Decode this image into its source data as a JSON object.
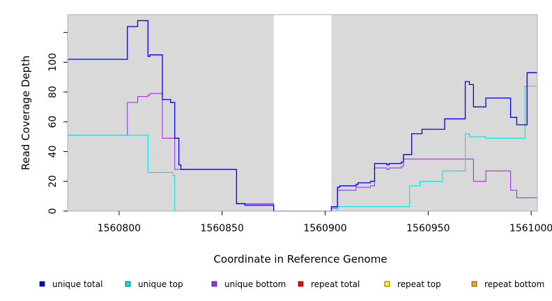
{
  "chart_data": {
    "type": "line",
    "title": "",
    "xlabel": "Coordinate in Reference Genome",
    "ylabel": "Read Coverage Depth",
    "xlim": [
      1560775,
      1561003
    ],
    "ylim": [
      0,
      132
    ],
    "x_ticks": [
      1560800,
      1560850,
      1560900,
      1560950,
      1561000
    ],
    "x_tick_labels": [
      "1560800",
      "1560850",
      "1560900",
      "1560950",
      "1561000"
    ],
    "y_ticks": [
      0,
      20,
      40,
      60,
      80,
      100,
      120
    ],
    "y_tick_labels": [
      "0",
      "20",
      "40",
      "60",
      "80",
      "100",
      ""
    ],
    "grid": false,
    "background_color": "#d9d9d9",
    "gap_region": [
      1560875,
      1560903
    ],
    "legend_position": "bottom",
    "series": [
      {
        "name": "unique total",
        "color": "#0000ee",
        "step": [
          [
            1560775,
            102
          ],
          [
            1560804,
            124
          ],
          [
            1560809,
            128
          ],
          [
            1560814,
            104
          ],
          [
            1560815,
            105
          ],
          [
            1560821,
            75
          ],
          [
            1560825,
            73
          ],
          [
            1560827,
            49
          ],
          [
            1560829,
            31
          ],
          [
            1560830,
            28
          ],
          [
            1560857,
            5
          ],
          [
            1560861,
            4
          ],
          [
            1560875,
            0
          ],
          [
            1560903,
            3
          ],
          [
            1560906,
            16
          ],
          [
            1560907,
            17
          ],
          [
            1560915,
            18
          ],
          [
            1560916,
            19
          ],
          [
            1560922,
            20
          ],
          [
            1560924,
            32
          ],
          [
            1560930,
            31
          ],
          [
            1560931,
            32
          ],
          [
            1560937,
            33
          ],
          [
            1560938,
            38
          ],
          [
            1560942,
            52
          ],
          [
            1560947,
            55
          ],
          [
            1560958,
            62
          ],
          [
            1560968,
            87
          ],
          [
            1560970,
            85
          ],
          [
            1560972,
            70
          ],
          [
            1560978,
            76
          ],
          [
            1560990,
            63
          ],
          [
            1560993,
            58
          ],
          [
            1560998,
            93
          ],
          [
            1561003,
            93
          ]
        ]
      },
      {
        "name": "unique top",
        "color": "#00e5e5",
        "step": [
          [
            1560775,
            51
          ],
          [
            1560814,
            26
          ],
          [
            1560826,
            24
          ],
          [
            1560827,
            0
          ],
          [
            1560875,
            0
          ],
          [
            1560903,
            0
          ],
          [
            1560906,
            3
          ],
          [
            1560941,
            17
          ],
          [
            1560946,
            20
          ],
          [
            1560957,
            27
          ],
          [
            1560968,
            52
          ],
          [
            1560970,
            50
          ],
          [
            1560978,
            49
          ],
          [
            1560997,
            84
          ],
          [
            1561003,
            84
          ]
        ]
      },
      {
        "name": "unique bottom",
        "color": "#a030f0",
        "step": [
          [
            1560775,
            51
          ],
          [
            1560804,
            73
          ],
          [
            1560809,
            77
          ],
          [
            1560814,
            78
          ],
          [
            1560815,
            79
          ],
          [
            1560821,
            49
          ],
          [
            1560827,
            28
          ],
          [
            1560857,
            5
          ],
          [
            1560875,
            0
          ],
          [
            1560903,
            2
          ],
          [
            1560906,
            14
          ],
          [
            1560915,
            16
          ],
          [
            1560922,
            17
          ],
          [
            1560924,
            29
          ],
          [
            1560930,
            28
          ],
          [
            1560931,
            29
          ],
          [
            1560937,
            30
          ],
          [
            1560938,
            35
          ],
          [
            1560972,
            20
          ],
          [
            1560978,
            27
          ],
          [
            1560990,
            14
          ],
          [
            1560993,
            9
          ],
          [
            1561003,
            9
          ]
        ]
      },
      {
        "name": "repeat total",
        "color": "#ff0000",
        "step": [
          [
            1560775,
            0
          ],
          [
            1561003,
            0
          ]
        ]
      },
      {
        "name": "repeat top",
        "color": "#ffff00",
        "step": [
          [
            1560775,
            0
          ],
          [
            1561003,
            0
          ]
        ]
      },
      {
        "name": "repeat bottom",
        "color": "#ffa500",
        "step": [
          [
            1560775,
            0
          ],
          [
            1561003,
            0
          ]
        ]
      }
    ]
  }
}
